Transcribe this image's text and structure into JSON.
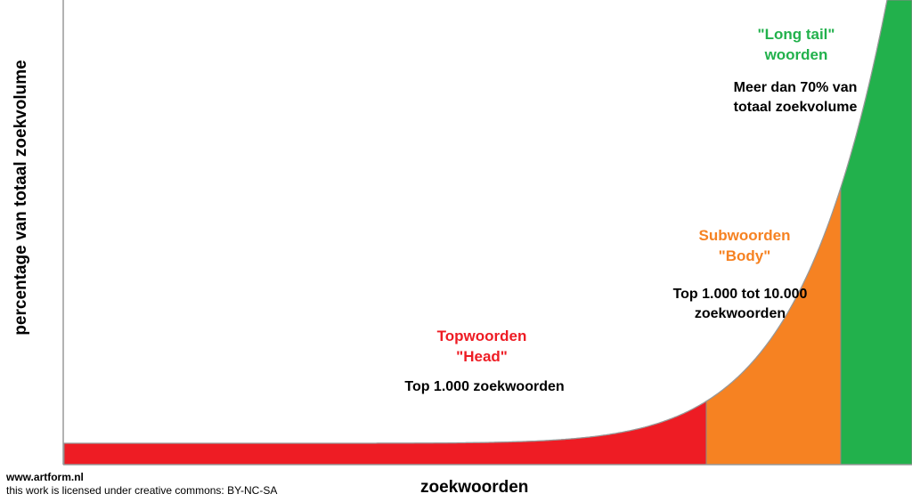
{
  "chart_data": {
    "type": "area",
    "xlabel": "zoekwoorden",
    "ylabel": "percentage van totaal zoekvolume",
    "segments": [
      {
        "title_line1": "Topwoorden",
        "title_line2": "\"Head\"",
        "desc_line1": "Top 1.000 zoekwoorden",
        "desc_line2": "",
        "color": "#ee1c24"
      },
      {
        "title_line1": "Subwoorden",
        "title_line2": "\"Body\"",
        "desc_line1": "Top 1.000 tot 10.000",
        "desc_line2": "zoekwoorden",
        "color": "#f68222"
      },
      {
        "title_line1": "\"Long tail\"",
        "title_line2": "woorden",
        "desc_line1": "Meer dan 70% van",
        "desc_line2": "totaal zoekvolume",
        "color": "#22b14c"
      }
    ]
  },
  "footer": {
    "site": "www.artform.nl",
    "license": "this work is licensed under creative commons: BY-NC-SA"
  },
  "colors": {
    "head_label": "#ee1c24",
    "body_label": "#f68222",
    "tail_label": "#22b14c",
    "axis": "#999999"
  }
}
